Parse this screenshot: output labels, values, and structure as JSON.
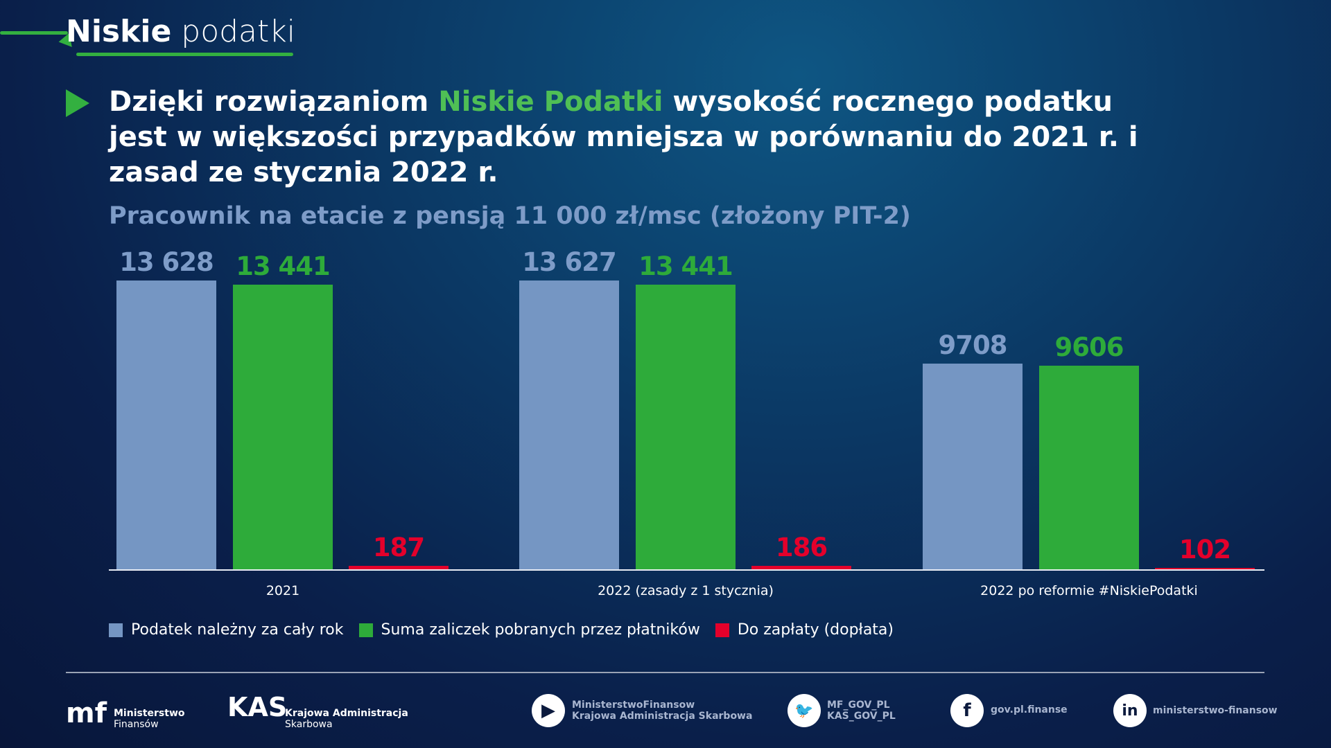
{
  "header": {
    "logo_bold": "Niskie",
    "logo_light": "podatki"
  },
  "headline": {
    "part1": "Dzięki rozwiązaniom ",
    "highlight": "Niskie Podatki",
    "part2": " wysokość rocznego podatku jest w większości przypadków mniejsza w porównaniu do 2021 r. i zasad ze stycznia 2022 r."
  },
  "chart_data": {
    "type": "bar",
    "title": "Pracownik na etacie z pensją 11 000 zł/msc (złożony PIT-2)",
    "categories": [
      "2021",
      "2022 (zasady z 1 stycznia)",
      "2022 po reformie #NiskiePodatki"
    ],
    "series": [
      {
        "name": "Podatek należny za cały rok",
        "color": "#7596c3",
        "values": [
          13628,
          13627,
          9708
        ],
        "labels": [
          "13 628",
          "13 627",
          "9708"
        ]
      },
      {
        "name": "Suma zaliczek pobranych przez płatników",
        "color": "#2eab3a",
        "values": [
          13441,
          13441,
          9606
        ],
        "labels": [
          "13 441",
          "13 441",
          "9606"
        ]
      },
      {
        "name": "Do zapłaty (dopłata)",
        "color": "#e4002b",
        "values": [
          187,
          186,
          102
        ],
        "labels": [
          "187",
          "186",
          "102"
        ]
      }
    ],
    "ylim": [
      0,
      13628
    ],
    "grid": false,
    "legend": "bottom-left"
  },
  "footer": {
    "mf": {
      "line1": "Ministerstwo",
      "line2": "Finansów"
    },
    "kas": {
      "line1": "Krajowa Administracja",
      "line2": "Skarbowa"
    },
    "youtube": {
      "line1": "MinisterstwoFinansow",
      "line2": "Krajowa Administracja Skarbowa"
    },
    "twitter": {
      "line1": "MF_GOV_PL",
      "line2": "KAS_GOV_PL"
    },
    "facebook": {
      "line1": "gov.pl.finanse"
    },
    "linkedin": {
      "line1": "ministerstwo-finansow"
    }
  }
}
